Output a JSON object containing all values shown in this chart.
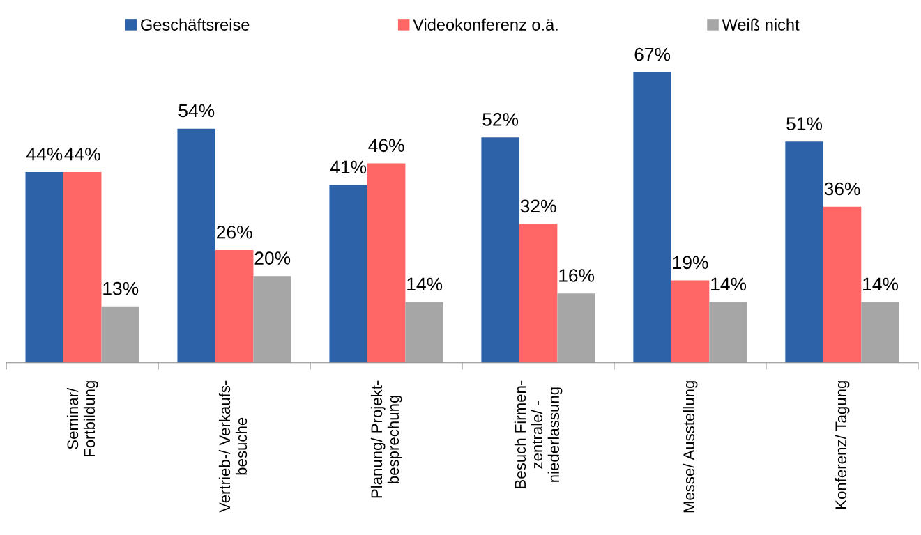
{
  "chart_data": {
    "type": "bar",
    "categories": [
      "Seminar/\nFortbildung",
      "Vertrieb-/ Verkaufs-\nbesuche",
      "Planung/ Projekt-\nbesprechung",
      "Besuch Firmen-\nzentrale/ -\nniederlassung",
      "Messe/ Ausstellung",
      "Konferenz/ Tagung"
    ],
    "series": [
      {
        "name": "Geschäftsreise",
        "color": "#2e62a8",
        "values": [
          44,
          54,
          41,
          52,
          67,
          51
        ],
        "value_labels": [
          "44%",
          "54%",
          "41%",
          "52%",
          "67%",
          "51%"
        ]
      },
      {
        "name": "Videokonferenz o.ä.",
        "color": "#ff6666",
        "values": [
          44,
          26,
          46,
          32,
          19,
          36
        ],
        "value_labels": [
          "44%",
          "26%",
          "46%",
          "32%",
          "19%",
          "36%"
        ]
      },
      {
        "name": "Weiß nicht",
        "color": "#a6a6a6",
        "values": [
          13,
          20,
          14,
          16,
          14,
          14
        ],
        "value_labels": [
          "13%",
          "20%",
          "14%",
          "16%",
          "14%",
          "14%"
        ]
      }
    ],
    "tick_labels": "x",
    "legend": "top"
  }
}
